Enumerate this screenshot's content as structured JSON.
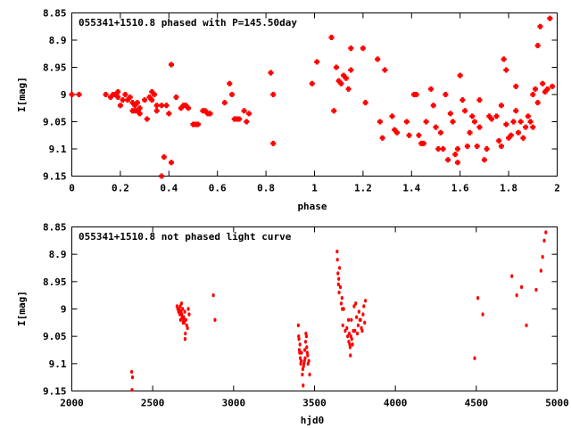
{
  "chart_data": [
    {
      "type": "scatter",
      "title": "055341+1510.8 phased with P=145.50day",
      "xlabel": "phase",
      "ylabel": "I[mag]",
      "xlim": [
        0,
        2
      ],
      "ylim": [
        9.15,
        8.85
      ],
      "y_inverted": true,
      "grid": false,
      "color": "#ff0000",
      "xticks": [
        "0",
        "0.2",
        "0.4",
        "0.6",
        "0.8",
        "1",
        "1.2",
        "1.4",
        "1.6",
        "1.8",
        "2"
      ],
      "yticks": [
        "8.85",
        "8.9",
        "8.95",
        "9",
        "9.05",
        "9.1",
        "9.15"
      ],
      "series": [
        {
          "points": [
            [
              0.0,
              9.0
            ],
            [
              0.03,
              9.0
            ],
            [
              0.14,
              9.0
            ],
            [
              0.16,
              9.005
            ],
            [
              0.17,
              9.0
            ],
            [
              0.18,
              9.0
            ],
            [
              0.19,
              9.005
            ],
            [
              0.19,
              8.995
            ],
            [
              0.2,
              9.02
            ],
            [
              0.21,
              9.01
            ],
            [
              0.22,
              9.0
            ],
            [
              0.23,
              9.01
            ],
            [
              0.24,
              9.005
            ],
            [
              0.25,
              9.03
            ],
            [
              0.25,
              9.015
            ],
            [
              0.26,
              9.02
            ],
            [
              0.26,
              9.03
            ],
            [
              0.27,
              9.03
            ],
            [
              0.27,
              9.015
            ],
            [
              0.28,
              9.025
            ],
            [
              0.28,
              9.035
            ],
            [
              0.3,
              9.01
            ],
            [
              0.31,
              9.045
            ],
            [
              0.32,
              9.005
            ],
            [
              0.33,
              8.995
            ],
            [
              0.33,
              9.01
            ],
            [
              0.34,
              9.0
            ],
            [
              0.35,
              9.02
            ],
            [
              0.35,
              9.03
            ],
            [
              0.37,
              9.15
            ],
            [
              0.37,
              9.02
            ],
            [
              0.38,
              9.115
            ],
            [
              0.39,
              9.02
            ],
            [
              0.4,
              9.035
            ],
            [
              0.41,
              8.945
            ],
            [
              0.41,
              9.125
            ],
            [
              0.43,
              9.005
            ],
            [
              0.45,
              9.025
            ],
            [
              0.46,
              9.02
            ],
            [
              0.47,
              9.02
            ],
            [
              0.48,
              9.025
            ],
            [
              0.5,
              9.055
            ],
            [
              0.51,
              9.055
            ],
            [
              0.52,
              9.055
            ],
            [
              0.54,
              9.03
            ],
            [
              0.55,
              9.03
            ],
            [
              0.56,
              9.035
            ],
            [
              0.57,
              9.035
            ],
            [
              0.63,
              9.015
            ],
            [
              0.65,
              8.98
            ],
            [
              0.66,
              9.0
            ],
            [
              0.67,
              9.045
            ],
            [
              0.68,
              9.045
            ],
            [
              0.69,
              9.045
            ],
            [
              0.71,
              9.03
            ],
            [
              0.72,
              9.05
            ],
            [
              0.73,
              9.035
            ],
            [
              0.82,
              8.96
            ],
            [
              0.83,
              9.0
            ],
            [
              0.83,
              9.09
            ],
            [
              0.99,
              8.98
            ],
            [
              1.01,
              8.94
            ],
            [
              1.07,
              8.895
            ],
            [
              1.08,
              9.03
            ],
            [
              1.09,
              8.95
            ],
            [
              1.1,
              8.975
            ],
            [
              1.11,
              8.98
            ],
            [
              1.12,
              8.965
            ],
            [
              1.13,
              8.97
            ],
            [
              1.14,
              8.99
            ],
            [
              1.15,
              8.915
            ],
            [
              1.15,
              8.955
            ],
            [
              1.2,
              8.915
            ],
            [
              1.21,
              9.015
            ],
            [
              1.26,
              8.935
            ],
            [
              1.27,
              9.05
            ],
            [
              1.28,
              9.08
            ],
            [
              1.29,
              8.955
            ],
            [
              1.32,
              9.04
            ],
            [
              1.33,
              9.065
            ],
            [
              1.34,
              9.07
            ],
            [
              1.38,
              9.05
            ],
            [
              1.39,
              9.075
            ],
            [
              1.41,
              9.0
            ],
            [
              1.42,
              9.0
            ],
            [
              1.43,
              9.075
            ],
            [
              1.44,
              9.09
            ],
            [
              1.45,
              9.09
            ],
            [
              1.46,
              9.05
            ],
            [
              1.48,
              8.99
            ],
            [
              1.49,
              9.02
            ],
            [
              1.5,
              9.06
            ],
            [
              1.51,
              9.1
            ],
            [
              1.52,
              9.07
            ],
            [
              1.53,
              9.1
            ],
            [
              1.54,
              9.0
            ],
            [
              1.55,
              9.12
            ],
            [
              1.56,
              9.035
            ],
            [
              1.57,
              9.05
            ],
            [
              1.58,
              9.11
            ],
            [
              1.59,
              9.125
            ],
            [
              1.59,
              9.1
            ],
            [
              1.6,
              8.965
            ],
            [
              1.61,
              9.01
            ],
            [
              1.62,
              9.03
            ],
            [
              1.63,
              9.095
            ],
            [
              1.64,
              9.07
            ],
            [
              1.65,
              9.04
            ],
            [
              1.66,
              9.05
            ],
            [
              1.67,
              9.095
            ],
            [
              1.68,
              9.06
            ],
            [
              1.68,
              9.01
            ],
            [
              1.7,
              9.12
            ],
            [
              1.71,
              9.1
            ],
            [
              1.72,
              9.04
            ],
            [
              1.73,
              9.045
            ],
            [
              1.75,
              9.04
            ],
            [
              1.76,
              9.085
            ],
            [
              1.77,
              9.02
            ],
            [
              1.77,
              9.095
            ],
            [
              1.78,
              8.935
            ],
            [
              1.79,
              8.955
            ],
            [
              1.79,
              9.055
            ],
            [
              1.8,
              9.08
            ],
            [
              1.81,
              9.075
            ],
            [
              1.82,
              9.05
            ],
            [
              1.83,
              8.985
            ],
            [
              1.83,
              9.03
            ],
            [
              1.84,
              9.07
            ],
            [
              1.85,
              9.05
            ],
            [
              1.86,
              9.08
            ],
            [
              1.87,
              9.06
            ],
            [
              1.88,
              9.04
            ],
            [
              1.89,
              9.05
            ],
            [
              1.9,
              9.0
            ],
            [
              1.9,
              9.06
            ],
            [
              1.91,
              8.99
            ],
            [
              1.92,
              9.015
            ],
            [
              1.92,
              8.91
            ],
            [
              1.93,
              8.875
            ],
            [
              1.94,
              8.98
            ],
            [
              1.95,
              8.995
            ],
            [
              1.96,
              8.99
            ],
            [
              1.97,
              8.86
            ],
            [
              1.98,
              8.985
            ]
          ]
        }
      ]
    },
    {
      "type": "scatter",
      "title": "055341+1510.8 not phased light curve",
      "xlabel": "hjd0",
      "ylabel": "I[mag]",
      "xlim": [
        2000,
        5000
      ],
      "ylim": [
        9.15,
        8.85
      ],
      "y_inverted": true,
      "grid": false,
      "color": "#ff0000",
      "xticks": [
        "2000",
        "2500",
        "3000",
        "3500",
        "4000",
        "4500",
        "5000"
      ],
      "yticks": [
        "8.85",
        "8.9",
        "8.95",
        "9",
        "9.05",
        "9.1",
        "9.15"
      ],
      "series": [
        {
          "points": [
            [
              2370,
              9.115
            ],
            [
              2375,
              9.125
            ],
            [
              2372,
              9.148
            ],
            [
              2650,
              8.995
            ],
            [
              2655,
              9.0
            ],
            [
              2660,
              9.005
            ],
            [
              2665,
              9.0
            ],
            [
              2668,
              9.01
            ],
            [
              2670,
              8.995
            ],
            [
              2672,
              9.02
            ],
            [
              2675,
              9.005
            ],
            [
              2678,
              8.99
            ],
            [
              2680,
              9.01
            ],
            [
              2682,
              9.015
            ],
            [
              2685,
              9.0
            ],
            [
              2688,
              9.025
            ],
            [
              2690,
              9.02
            ],
            [
              2692,
              9.015
            ],
            [
              2695,
              9.025
            ],
            [
              2698,
              9.005
            ],
            [
              2700,
              9.055
            ],
            [
              2702,
              9.045
            ],
            [
              2705,
              9.02
            ],
            [
              2710,
              9.03
            ],
            [
              2715,
              9.035
            ],
            [
              2720,
              9.0
            ],
            [
              2725,
              9.01
            ],
            [
              2875,
              8.975
            ],
            [
              2885,
              9.02
            ],
            [
              3400,
              9.03
            ],
            [
              3402,
              9.05
            ],
            [
              3404,
              9.055
            ],
            [
              3406,
              9.075
            ],
            [
              3408,
              9.08
            ],
            [
              3410,
              9.065
            ],
            [
              3412,
              9.09
            ],
            [
              3415,
              9.1
            ],
            [
              3418,
              9.095
            ],
            [
              3420,
              9.08
            ],
            [
              3425,
              9.12
            ],
            [
              3428,
              9.11
            ],
            [
              3430,
              9.14
            ],
            [
              3432,
              9.105
            ],
            [
              3435,
              9.1
            ],
            [
              3438,
              9.095
            ],
            [
              3440,
              9.075
            ],
            [
              3442,
              9.09
            ],
            [
              3445,
              9.06
            ],
            [
              3447,
              9.045
            ],
            [
              3450,
              9.05
            ],
            [
              3452,
              9.07
            ],
            [
              3455,
              9.08
            ],
            [
              3458,
              9.085
            ],
            [
              3460,
              9.1
            ],
            [
              3465,
              9.095
            ],
            [
              3470,
              9.12
            ],
            [
              3640,
              8.895
            ],
            [
              3642,
              8.91
            ],
            [
              3645,
              8.935
            ],
            [
              3648,
              8.955
            ],
            [
              3650,
              8.945
            ],
            [
              3652,
              8.97
            ],
            [
              3655,
              8.925
            ],
            [
              3660,
              8.96
            ],
            [
              3665,
              8.99
            ],
            [
              3670,
              8.98
            ],
            [
              3672,
              9.0
            ],
            [
              3675,
              9.03
            ],
            [
              3680,
              9.0
            ],
            [
              3690,
              9.04
            ],
            [
              3700,
              9.035
            ],
            [
              3705,
              9.05
            ],
            [
              3710,
              9.02
            ],
            [
              3712,
              9.06
            ],
            [
              3715,
              9.045
            ],
            [
              3718,
              9.065
            ],
            [
              3720,
              9.07
            ],
            [
              3722,
              9.085
            ],
            [
              3725,
              9.05
            ],
            [
              3728,
              9.02
            ],
            [
              3730,
              9.055
            ],
            [
              3735,
              9.065
            ],
            [
              3740,
              9.04
            ],
            [
              3745,
              8.995
            ],
            [
              3750,
              9.04
            ],
            [
              3755,
              8.99
            ],
            [
              3760,
              9.015
            ],
            [
              3765,
              9.045
            ],
            [
              3770,
              9.03
            ],
            [
              3775,
              9.005
            ],
            [
              3780,
              9.02
            ],
            [
              3785,
              9.02
            ],
            [
              3790,
              9.035
            ],
            [
              3795,
              9.04
            ],
            [
              3800,
              9.01
            ],
            [
              3805,
              8.995
            ],
            [
              3810,
              9.025
            ],
            [
              3815,
              8.985
            ],
            [
              4490,
              9.09
            ],
            [
              4510,
              8.98
            ],
            [
              4540,
              9.01
            ],
            [
              4720,
              8.94
            ],
            [
              4750,
              8.975
            ],
            [
              4780,
              8.96
            ],
            [
              4810,
              9.03
            ],
            [
              4870,
              8.965
            ],
            [
              4900,
              8.93
            ],
            [
              4910,
              8.905
            ],
            [
              4920,
              8.875
            ],
            [
              4930,
              8.86
            ]
          ]
        }
      ]
    }
  ]
}
